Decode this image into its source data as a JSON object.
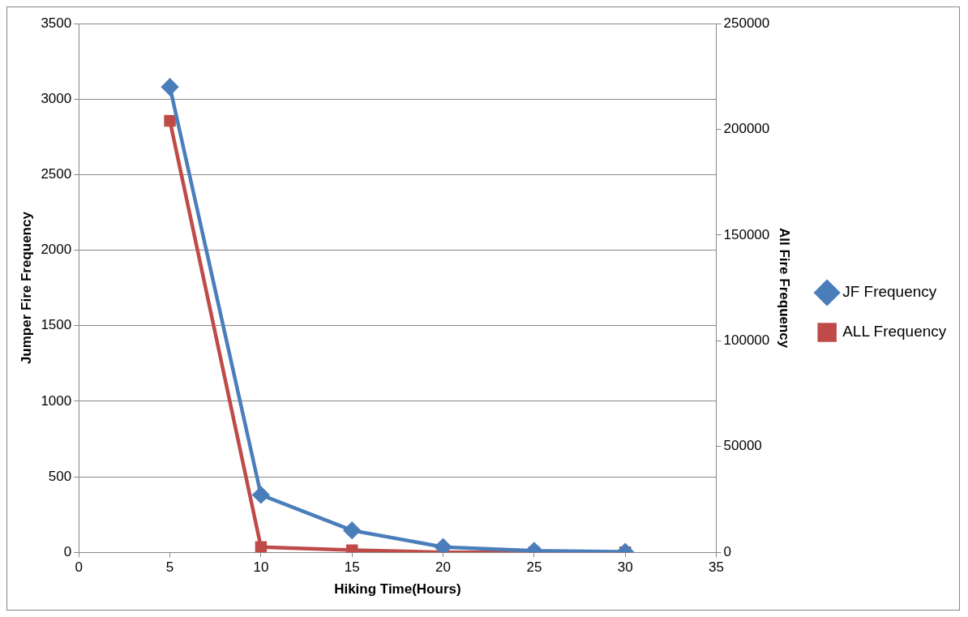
{
  "chart_data": {
    "type": "line",
    "xlabel": "Hiking Time(Hours)",
    "ylabel": "Jumper Fire Frequency",
    "y2label": "All Fire Frequency",
    "x": [
      5,
      10,
      15,
      20,
      25,
      30
    ],
    "series": [
      {
        "name": "JF Frequency",
        "color": "#4a7ebb",
        "values": [
          3080,
          380,
          145,
          35,
          10,
          3
        ],
        "marker": "diamond"
      },
      {
        "name": "ALL Frequency",
        "color": "#be4b48",
        "values": [
          204000,
          2500,
          1000,
          0,
          0,
          0
        ],
        "marker": "square",
        "axis": "y2"
      }
    ],
    "xlim": [
      0,
      35
    ],
    "xticks": [
      0,
      5,
      10,
      15,
      20,
      25,
      30,
      35
    ],
    "ylim": [
      0,
      3500
    ],
    "yticks": [
      0,
      500,
      1000,
      1500,
      2000,
      2500,
      3000,
      3500
    ],
    "y2lim": [
      0,
      250000
    ],
    "y2ticks": [
      0,
      50000,
      100000,
      150000,
      200000,
      250000
    ],
    "grid": "y",
    "legend": "right"
  }
}
